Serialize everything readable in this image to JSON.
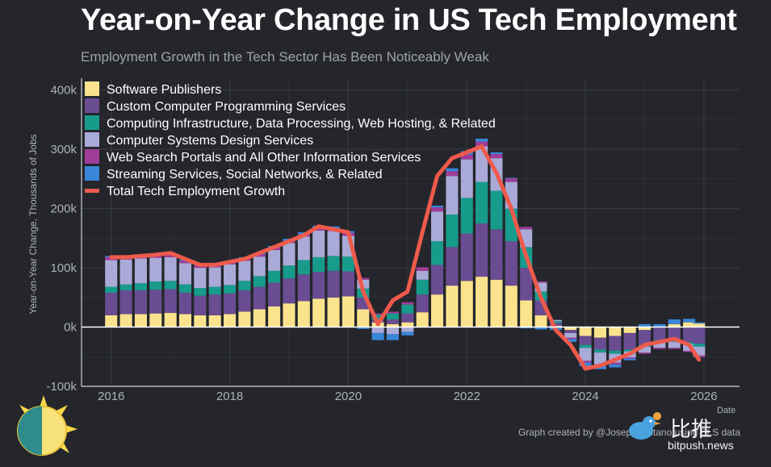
{
  "title": "Year-on-Year Change in US Tech Employment",
  "subtitle": "Employment Growth in the Tech Sector Has Been Noticeably Weak",
  "credit": "Graph created by @JosephPolitano using BLS data",
  "watermark": {
    "text_cn": "比推",
    "url": "bitpush.news"
  },
  "colors": {
    "background": "#24262b",
    "grid": "#3a3d44",
    "total_line": "#ee5a4c"
  },
  "chart_data": {
    "type": "bar",
    "stacked": true,
    "title": "Year-on-Year Change in US Tech Employment",
    "subtitle": "Employment Growth in the Tech Sector Has Been Noticeably Weak",
    "xlabel": "Date",
    "ylabel": "Year-on-Year Change, Thousands of Jobs",
    "ylim": [
      -100,
      420
    ],
    "xlim": [
      2015.5,
      2026.6
    ],
    "y_ticks": [
      -100,
      0,
      100,
      200,
      300,
      400
    ],
    "y_tick_labels": [
      "-100k",
      "0k",
      "100k",
      "200k",
      "300k",
      "400k"
    ],
    "x_ticks": [
      2016,
      2018,
      2020,
      2022,
      2024,
      2026
    ],
    "x_tick_labels": [
      "2016",
      "2018",
      "2020",
      "2022",
      "2024",
      "2026"
    ],
    "legend_position": "top-left",
    "grid": true,
    "x": [
      "2016-01",
      "2016-04",
      "2016-07",
      "2016-10",
      "2017-01",
      "2017-04",
      "2017-07",
      "2017-10",
      "2018-01",
      "2018-04",
      "2018-07",
      "2018-10",
      "2019-01",
      "2019-04",
      "2019-07",
      "2019-10",
      "2020-01",
      "2020-04",
      "2020-07",
      "2020-10",
      "2021-01",
      "2021-04",
      "2021-07",
      "2021-10",
      "2022-01",
      "2022-04",
      "2022-07",
      "2022-10",
      "2023-01",
      "2023-04",
      "2023-07",
      "2023-10",
      "2024-01",
      "2024-04",
      "2024-07",
      "2024-10",
      "2025-01",
      "2025-04",
      "2025-07",
      "2025-10",
      "2025-12"
    ],
    "series": [
      {
        "name": "Software Publishers",
        "color": "#fbe38e",
        "values": [
          20,
          22,
          22,
          23,
          24,
          22,
          20,
          20,
          22,
          26,
          30,
          35,
          40,
          44,
          48,
          50,
          52,
          30,
          8,
          5,
          8,
          25,
          55,
          70,
          78,
          85,
          80,
          70,
          45,
          20,
          2,
          -5,
          -15,
          -18,
          -15,
          -10,
          -5,
          0,
          5,
          8,
          6
        ]
      },
      {
        "name": "Custom Computer Programming Services",
        "color": "#6a4c93",
        "values": [
          38,
          40,
          40,
          40,
          40,
          36,
          33,
          35,
          35,
          36,
          38,
          40,
          42,
          45,
          45,
          45,
          42,
          20,
          5,
          8,
          15,
          30,
          50,
          65,
          80,
          90,
          85,
          75,
          55,
          25,
          5,
          -5,
          -15,
          -20,
          -25,
          -28,
          -25,
          -22,
          -22,
          -25,
          -28
        ]
      },
      {
        "name": "Computing Infrastructure, Data Processing, Web Hosting, & Related",
        "color": "#179c8c",
        "values": [
          10,
          10,
          12,
          14,
          14,
          14,
          13,
          13,
          14,
          16,
          18,
          20,
          22,
          24,
          25,
          25,
          25,
          15,
          8,
          10,
          15,
          25,
          40,
          55,
          60,
          70,
          65,
          55,
          35,
          15,
          3,
          0,
          -5,
          -5,
          -5,
          -3,
          -3,
          -3,
          -3,
          -3,
          -5
        ]
      },
      {
        "name": "Computer Systems Design Services",
        "color": "#aaaad8",
        "values": [
          45,
          42,
          42,
          40,
          40,
          36,
          34,
          33,
          35,
          34,
          33,
          35,
          38,
          40,
          45,
          42,
          35,
          15,
          -10,
          -12,
          -8,
          15,
          50,
          65,
          65,
          60,
          55,
          45,
          30,
          15,
          2,
          -8,
          -22,
          -20,
          -15,
          -10,
          -10,
          -10,
          -10,
          -12,
          -15
        ]
      },
      {
        "name": "Web Search Portals and All Other Information Services",
        "color": "#a03c9a",
        "values": [
          5,
          5,
          5,
          5,
          5,
          4,
          4,
          4,
          4,
          4,
          4,
          4,
          4,
          4,
          5,
          5,
          5,
          3,
          2,
          3,
          4,
          6,
          7,
          8,
          8,
          8,
          7,
          6,
          4,
          2,
          0,
          -2,
          -3,
          -3,
          -3,
          -2,
          -2,
          -2,
          -2,
          -2,
          -3
        ]
      },
      {
        "name": "Streaming Services, Social Networks, & Related",
        "color": "#3a86d9",
        "values": [
          2,
          2,
          2,
          2,
          2,
          2,
          2,
          2,
          2,
          2,
          2,
          3,
          3,
          3,
          3,
          3,
          3,
          -3,
          -12,
          -10,
          -6,
          0,
          3,
          5,
          6,
          5,
          3,
          1,
          -2,
          -4,
          -5,
          -5,
          -6,
          -5,
          -5,
          -3,
          5,
          5,
          8,
          6,
          2
        ]
      },
      {
        "name": "Total Tech Employment Growth",
        "color": "#ee5a4c",
        "type": "line",
        "values": [
          118,
          118,
          120,
          122,
          125,
          115,
          105,
          105,
          110,
          115,
          125,
          135,
          145,
          155,
          170,
          165,
          160,
          60,
          5,
          45,
          60,
          160,
          255,
          285,
          295,
          305,
          260,
          200,
          120,
          50,
          -5,
          -30,
          -70,
          -65,
          -55,
          -45,
          -30,
          -25,
          -20,
          -30,
          -55
        ]
      }
    ]
  }
}
